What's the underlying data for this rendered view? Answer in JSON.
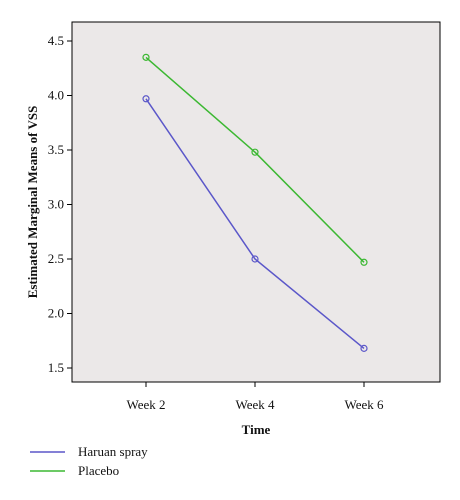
{
  "chart_data": {
    "type": "line",
    "xlabel": "Time",
    "ylabel": "Estimated Marginal Means of VSS",
    "categories": [
      "Week 2",
      "Week 4",
      "Week 6"
    ],
    "ylim": [
      1.5,
      4.5
    ],
    "yticks": [
      "1.5",
      "2.0",
      "2.5",
      "3.0",
      "3.5",
      "4.0",
      "4.5"
    ],
    "grid": false,
    "legend_position": "bottom-left",
    "plot_background": "#ebe8e8",
    "series": [
      {
        "name": "Haruan spray",
        "color": "#5b57c9",
        "values": [
          3.97,
          2.5,
          1.68
        ]
      },
      {
        "name": "Placebo",
        "color": "#3cb832",
        "values": [
          4.35,
          3.48,
          2.47
        ]
      }
    ]
  }
}
